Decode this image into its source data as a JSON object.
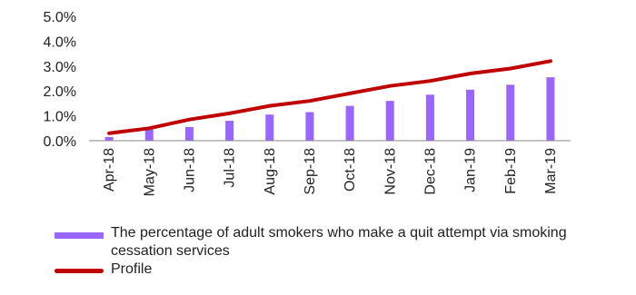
{
  "chart_data": {
    "type": "bar",
    "categories": [
      "Apr-18",
      "May-18",
      "Jun-18",
      "Jul-18",
      "Aug-18",
      "Sep-18",
      "Oct-18",
      "Nov-18",
      "Dec-18",
      "Jan-19",
      "Feb-19",
      "Mar-19"
    ],
    "series": [
      {
        "name": "The percentage of adult smokers who make a quit attempt via smoking cessation services",
        "kind": "bar",
        "color": "#9966FF",
        "values": [
          0.15,
          0.45,
          0.55,
          0.8,
          1.05,
          1.15,
          1.4,
          1.6,
          1.85,
          2.05,
          2.25,
          2.55
        ]
      },
      {
        "name": "Profile",
        "kind": "line",
        "color": "#C00000",
        "values": [
          0.3,
          0.5,
          0.85,
          1.1,
          1.4,
          1.6,
          1.9,
          2.2,
          2.4,
          2.7,
          2.9,
          3.2
        ]
      }
    ],
    "y_ticks": [
      "5.0%",
      "4.0%",
      "3.0%",
      "2.0%",
      "1.0%",
      "0.0%"
    ],
    "ylim": [
      0,
      5
    ],
    "y_unit": "%",
    "grid": false,
    "legend_position": "bottom"
  }
}
